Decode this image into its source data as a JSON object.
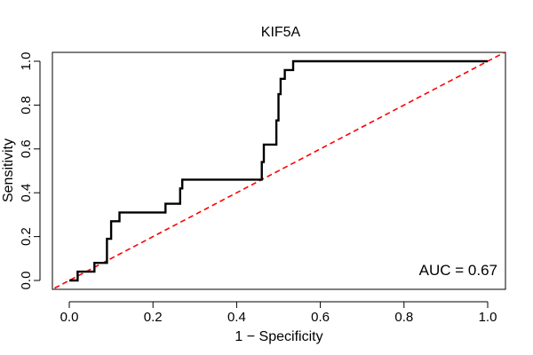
{
  "chart_data": {
    "type": "line",
    "title": "KIF5A",
    "xlabel": "1 − Specificity",
    "ylabel": "Sensitivity",
    "xlim": [
      0,
      1
    ],
    "ylim": [
      0,
      1
    ],
    "x_ticks": [
      0.0,
      0.2,
      0.4,
      0.6,
      0.8,
      1.0
    ],
    "y_ticks": [
      0.0,
      0.2,
      0.4,
      0.6,
      0.8,
      1.0
    ],
    "x_tick_labels": [
      "0.0",
      "0.2",
      "0.4",
      "0.6",
      "0.8",
      "1.0"
    ],
    "y_tick_labels": [
      "0.0",
      "0.2",
      "0.4",
      "0.6",
      "0.8",
      "1.0"
    ],
    "annotation": "AUC = 0.67",
    "auc": 0.67,
    "series": [
      {
        "name": "ROC curve",
        "color": "#000000",
        "x": [
          0.0,
          0.02,
          0.02,
          0.06,
          0.06,
          0.09,
          0.09,
          0.1,
          0.1,
          0.12,
          0.12,
          0.23,
          0.23,
          0.265,
          0.265,
          0.27,
          0.27,
          0.46,
          0.46,
          0.465,
          0.465,
          0.495,
          0.495,
          0.5,
          0.5,
          0.505,
          0.505,
          0.515,
          0.515,
          0.535,
          0.535,
          1.0
        ],
        "y": [
          0.0,
          0.0,
          0.04,
          0.04,
          0.08,
          0.08,
          0.19,
          0.19,
          0.27,
          0.27,
          0.31,
          0.31,
          0.35,
          0.35,
          0.42,
          0.42,
          0.46,
          0.46,
          0.54,
          0.54,
          0.62,
          0.62,
          0.73,
          0.73,
          0.85,
          0.85,
          0.92,
          0.92,
          0.96,
          0.96,
          1.0,
          1.0
        ]
      },
      {
        "name": "Reference diagonal",
        "color": "#ff0000",
        "style": "dashed",
        "x": [
          0.0,
          1.0
        ],
        "y": [
          0.0,
          1.0
        ]
      }
    ]
  }
}
